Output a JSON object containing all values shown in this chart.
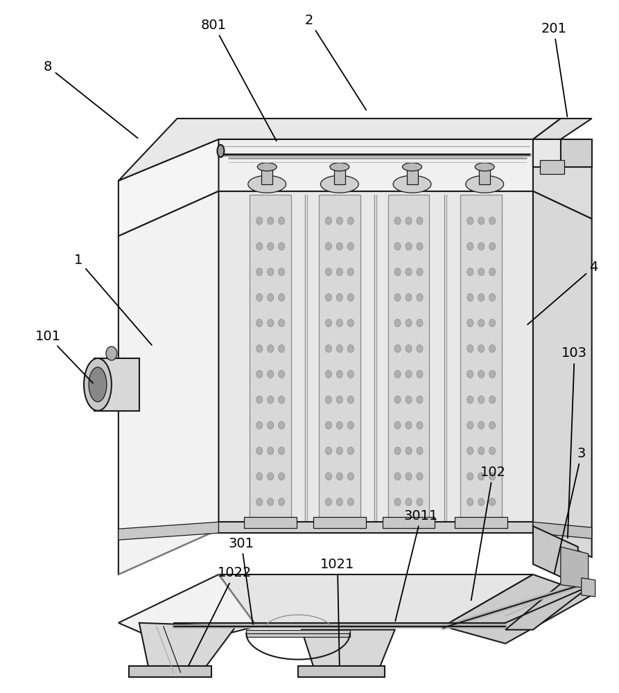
{
  "bg_color": "#ffffff",
  "lc": "#1a1a1a",
  "lw": 1.5,
  "tlw": 0.9,
  "fs": 14,
  "face_left": "#f2f2f2",
  "face_front": "#e8e8e8",
  "face_right": "#d8d8d8",
  "face_top": "#efefef",
  "face_dark": "#c0c0c0",
  "face_inner": "#dcdcdc",
  "face_hopper": "#e5e5e5",
  "face_hopper_r": "#cccccc"
}
